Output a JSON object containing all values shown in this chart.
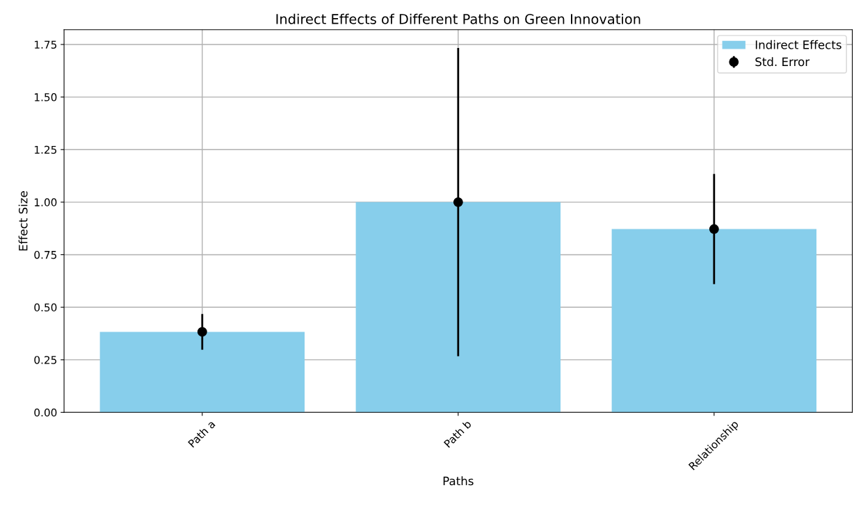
{
  "chart_data": {
    "type": "bar",
    "title": "Indirect Effects of Different Paths on Green Innovation",
    "xlabel": "Paths",
    "ylabel": "Effect Size",
    "categories": [
      "Path a",
      "Path b",
      "Relationship"
    ],
    "series": [
      {
        "name": "Indirect Effects",
        "color": "#87ceeb",
        "values": [
          0.383,
          1.0,
          0.872
        ]
      },
      {
        "name": "Std. Error",
        "type": "scatter",
        "color": "#000000",
        "values": [
          0.383,
          1.0,
          0.872
        ],
        "errors": [
          0.085,
          0.733,
          0.262
        ]
      }
    ],
    "ylim": [
      0,
      1.82
    ],
    "yticks": [
      {
        "value": 0,
        "label": "0.00"
      },
      {
        "value": 0.25,
        "label": "0.25"
      },
      {
        "value": 0.5,
        "label": "0.50"
      },
      {
        "value": 0.75,
        "label": "0.75"
      },
      {
        "value": 1,
        "label": "1.00"
      },
      {
        "value": 1.25,
        "label": "1.25"
      },
      {
        "value": 1.5,
        "label": "1.50"
      },
      {
        "value": 1.75,
        "label": "1.75"
      }
    ],
    "grid": true,
    "legend": "top right",
    "marker": "circle"
  }
}
